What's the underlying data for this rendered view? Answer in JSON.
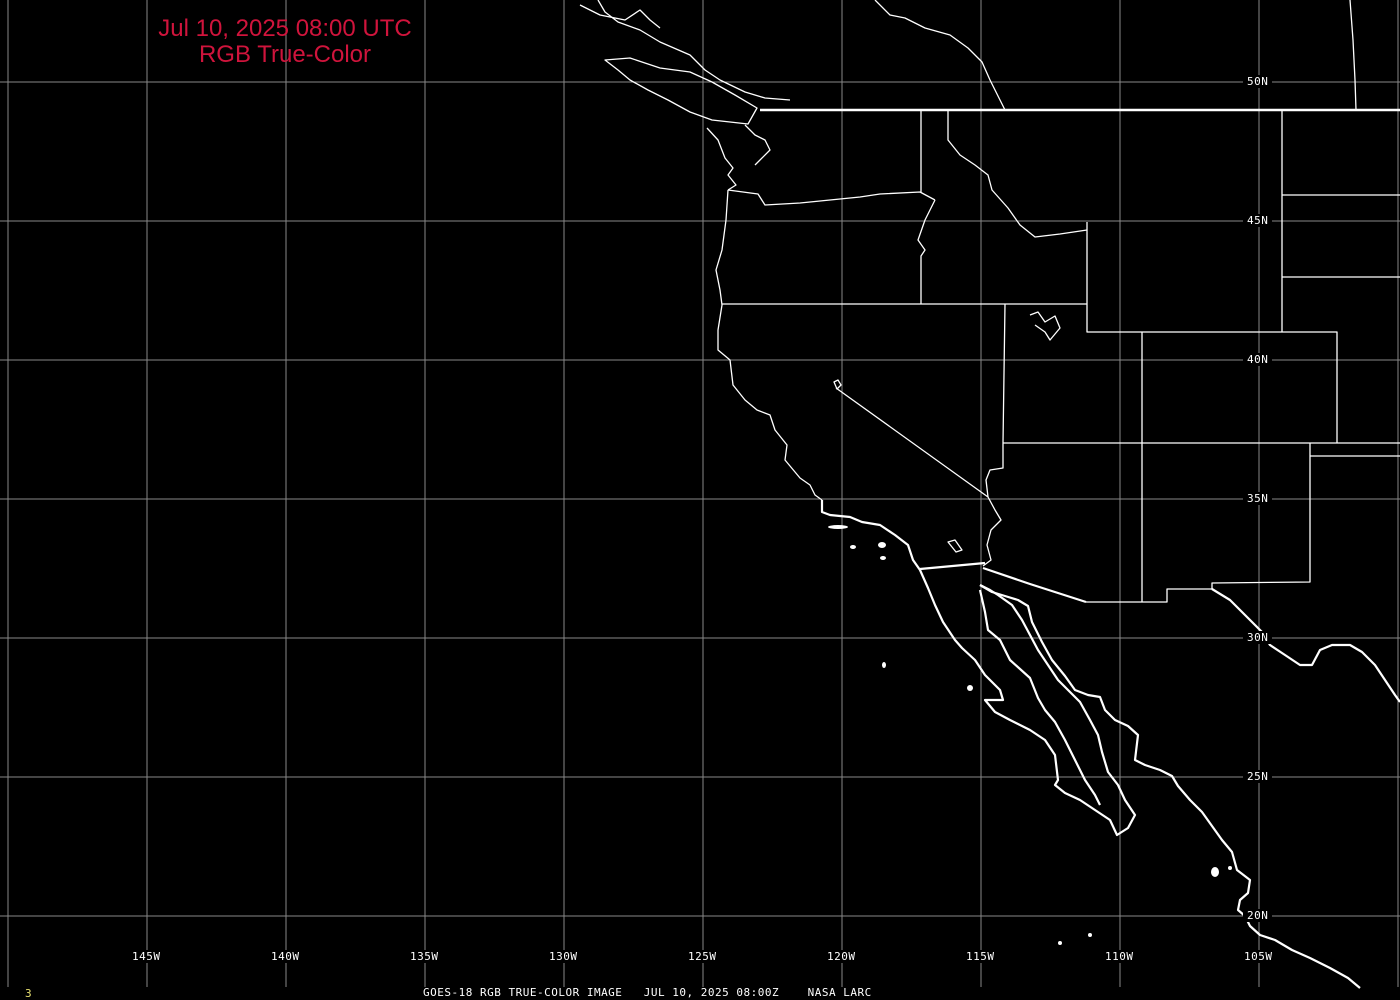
{
  "header": {
    "title_line1": "Jul 10, 2025 08:00 UTC",
    "title_line2": "RGB True-Color"
  },
  "footer": {
    "frame_number": "3",
    "caption": "GOES-18 RGB TRUE-COLOR IMAGE   JUL 10, 2025 08:00Z    NASA LARC"
  },
  "grid": {
    "lon_labels": [
      "145W",
      "140W",
      "135W",
      "130W",
      "125W",
      "120W",
      "115W",
      "110W",
      "105W"
    ],
    "lat_labels": [
      "50N",
      "45N",
      "40N",
      "35N",
      "30N",
      "25N",
      "20N"
    ]
  },
  "colors": {
    "background": "#000000",
    "title": "#d0143c",
    "grid": "#888888",
    "boundaries": "#ffffff",
    "frame_number": "#e8e070"
  }
}
